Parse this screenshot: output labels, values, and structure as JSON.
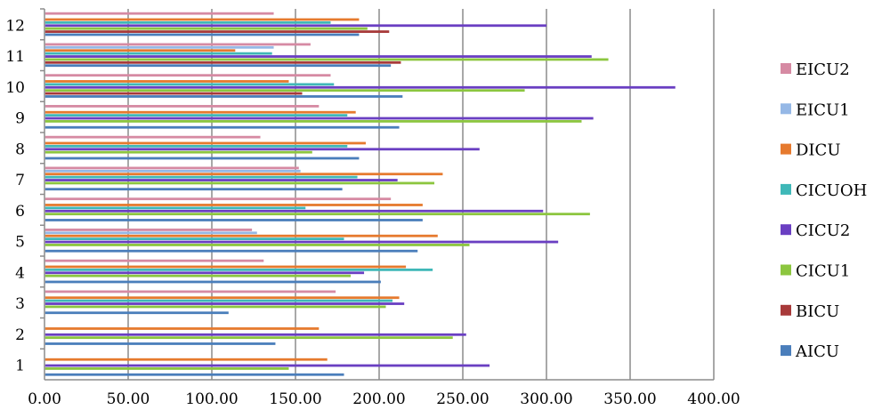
{
  "chart_data": {
    "type": "bar",
    "orientation": "horizontal",
    "categories": [
      "1",
      "2",
      "3",
      "4",
      "5",
      "6",
      "7",
      "8",
      "9",
      "10",
      "11",
      "12"
    ],
    "xlim": [
      0,
      400
    ],
    "xticks": [
      "0.00",
      "50.00",
      "100.00",
      "150.00",
      "200.00",
      "250.00",
      "300.00",
      "350.00",
      "400.00"
    ],
    "grid": "vertical",
    "legend_position": "right",
    "title": "",
    "xlabel": "",
    "ylabel": "",
    "series": [
      {
        "name": "AICU",
        "color": "#4a7ebb",
        "values": [
          179,
          138,
          110,
          201,
          223,
          226,
          178,
          188,
          212,
          214,
          207,
          188
        ]
      },
      {
        "name": "BICU",
        "color": "#a83a3a",
        "values": [
          0,
          0,
          0,
          0,
          0,
          0,
          0,
          0,
          0,
          154,
          213,
          206
        ]
      },
      {
        "name": "CICU1",
        "color": "#8cc63f",
        "values": [
          146,
          244,
          204,
          183,
          254,
          326,
          233,
          160,
          321,
          287,
          337,
          193
        ]
      },
      {
        "name": "CICU2",
        "color": "#6a3fc2",
        "values": [
          266,
          252,
          215,
          191,
          307,
          298,
          211,
          260,
          328,
          377,
          327,
          300
        ]
      },
      {
        "name": "CICUOH",
        "color": "#3fb8b8",
        "values": [
          0,
          0,
          208,
          232,
          179,
          156,
          187,
          181,
          181,
          173,
          136,
          171
        ]
      },
      {
        "name": "DICU",
        "color": "#e67a2e",
        "values": [
          169,
          164,
          212,
          216,
          235,
          226,
          238,
          192,
          186,
          146,
          114,
          188
        ]
      },
      {
        "name": "EICU1",
        "color": "#95b8e6",
        "values": [
          0,
          0,
          0,
          0,
          127,
          0,
          153,
          0,
          0,
          0,
          137,
          0
        ]
      },
      {
        "name": "EICU2",
        "color": "#d68aa3",
        "values": [
          0,
          0,
          174,
          131,
          124,
          207,
          152,
          129,
          164,
          171,
          159,
          137
        ]
      }
    ]
  }
}
